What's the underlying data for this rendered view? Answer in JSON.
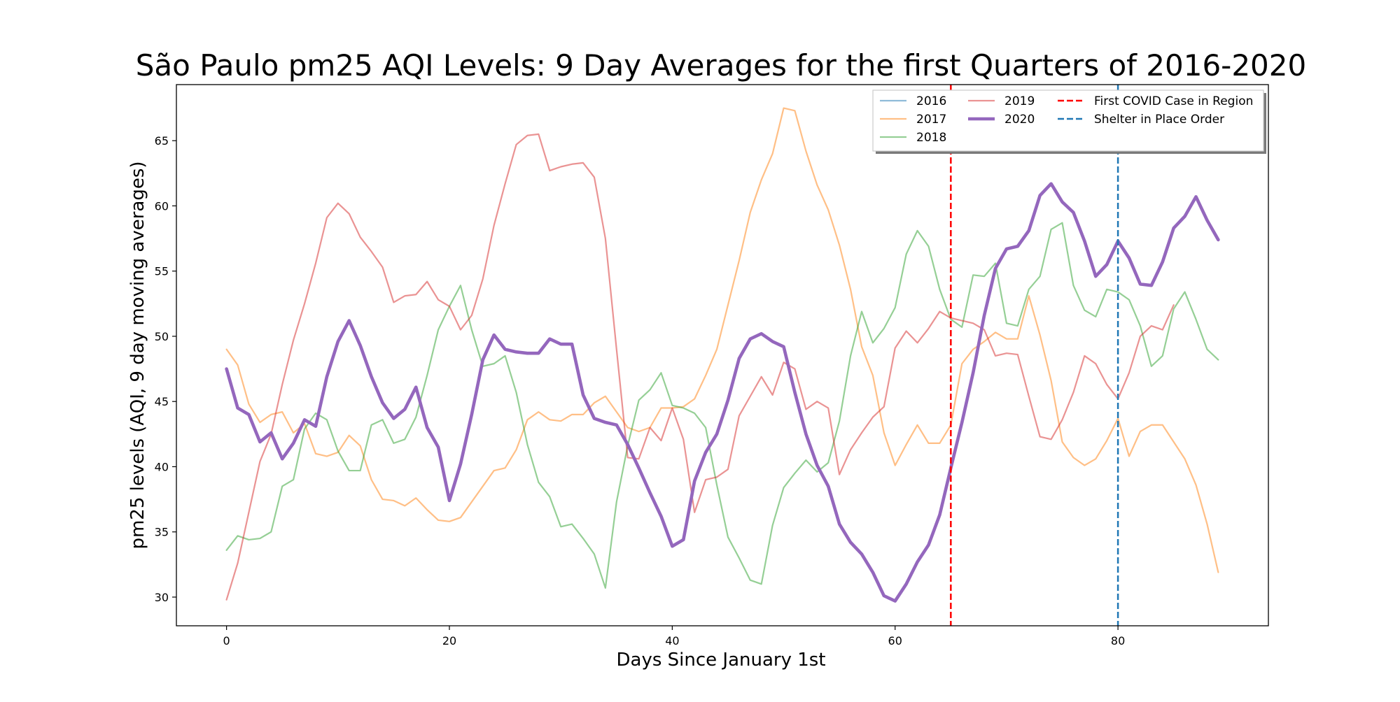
{
  "chart_data": {
    "type": "line",
    "title": "São Paulo pm25 AQI Levels: 9 Day Averages for the first Quarters of 2016-2020",
    "xlabel": "Days Since January 1st",
    "ylabel": "pm25 levels (AQI, 9 day moving averages)",
    "xlim": [
      -4.5,
      93.5
    ],
    "ylim": [
      27.8,
      69.3
    ],
    "xticks": [
      0,
      20,
      40,
      60,
      80
    ],
    "yticks": [
      30,
      35,
      40,
      45,
      50,
      55,
      60,
      65
    ],
    "grid": false,
    "legend_position": "top-right",
    "series": [
      {
        "name": "2016",
        "color": "#1f77b4",
        "x": [],
        "values": []
      },
      {
        "name": "2017",
        "color": "#ff7f0e",
        "x": [
          0,
          1,
          2,
          3,
          4,
          5,
          6,
          7,
          8,
          9,
          10,
          11,
          12,
          13,
          14,
          15,
          16,
          17,
          18,
          19,
          20,
          21,
          22,
          23,
          24,
          25,
          26,
          27,
          28,
          29,
          30,
          31,
          32,
          33,
          34,
          35,
          36,
          37,
          38,
          39,
          40,
          41,
          42,
          43,
          44,
          45,
          46,
          47,
          48,
          49,
          50,
          51,
          52,
          53,
          54,
          55,
          56,
          57,
          58,
          59,
          60,
          61,
          62,
          63,
          64,
          65,
          66,
          67,
          68,
          69,
          70,
          71,
          72,
          73,
          74,
          75,
          76,
          77,
          78,
          79,
          80,
          81,
          82,
          83,
          84,
          85,
          86,
          87,
          88,
          89
        ],
        "values": [
          49.0,
          47.8,
          44.8,
          43.4,
          44.0,
          44.2,
          42.6,
          43.3,
          41.0,
          40.8,
          41.1,
          42.4,
          41.6,
          39.0,
          37.5,
          37.4,
          37.0,
          37.6,
          36.7,
          35.9,
          35.8,
          36.1,
          37.3,
          38.5,
          39.7,
          39.9,
          41.3,
          43.6,
          44.2,
          43.6,
          43.5,
          44.0,
          44.0,
          44.9,
          45.4,
          44.2,
          43.0,
          42.7,
          43.0,
          44.5,
          44.5,
          44.6,
          45.2,
          47.0,
          49.0,
          52.4,
          55.8,
          59.5,
          62.0,
          64.0,
          67.5,
          67.3,
          64.2,
          61.6,
          59.7,
          57.0,
          53.6,
          49.2,
          47.0,
          42.6,
          40.1,
          41.7,
          43.2,
          41.8,
          41.8,
          43.2,
          47.9,
          49.0,
          49.6,
          50.3,
          49.8,
          49.8,
          53.1,
          50.1,
          46.6,
          41.9,
          40.7,
          40.1,
          40.6,
          42.0,
          43.7,
          40.8,
          42.7,
          43.2,
          43.2,
          41.9,
          40.6,
          38.6,
          35.6,
          31.9
        ]
      },
      {
        "name": "2018",
        "color": "#2ca02c",
        "x": [
          0,
          1,
          2,
          3,
          4,
          5,
          6,
          7,
          8,
          9,
          10,
          11,
          12,
          13,
          14,
          15,
          16,
          17,
          18,
          19,
          20,
          21,
          22,
          23,
          24,
          25,
          26,
          27,
          28,
          29,
          30,
          31,
          32,
          33,
          34,
          35,
          36,
          37,
          38,
          39,
          40,
          41,
          42,
          43,
          44,
          45,
          46,
          47,
          48,
          49,
          50,
          51,
          52,
          53,
          54,
          55,
          56,
          57,
          58,
          59,
          60,
          61,
          62,
          63,
          64,
          65,
          66,
          67,
          68,
          69,
          70,
          71,
          72,
          73,
          74,
          75,
          76,
          77,
          78,
          79,
          80,
          81,
          82,
          83,
          84,
          85,
          86,
          87,
          88,
          89
        ],
        "values": [
          33.6,
          34.7,
          34.4,
          34.5,
          35.0,
          38.5,
          39.0,
          42.9,
          44.1,
          43.6,
          41.2,
          39.7,
          39.7,
          43.2,
          43.6,
          41.8,
          42.1,
          43.8,
          47.0,
          50.5,
          52.3,
          53.9,
          50.5,
          47.7,
          47.9,
          48.5,
          45.7,
          41.7,
          38.8,
          37.7,
          35.4,
          35.6,
          34.5,
          33.3,
          30.7,
          37.3,
          41.6,
          45.1,
          45.9,
          47.2,
          44.7,
          44.5,
          44.1,
          43.0,
          38.6,
          34.6,
          33.0,
          31.3,
          31.0,
          35.5,
          38.4,
          39.5,
          40.5,
          39.6,
          40.3,
          43.5,
          48.5,
          51.9,
          49.5,
          50.6,
          52.2,
          56.3,
          58.1,
          56.9,
          53.6,
          51.3,
          50.7,
          54.7,
          54.6,
          55.6,
          51.0,
          50.8,
          53.6,
          54.6,
          58.2,
          58.7,
          53.9,
          52.0,
          51.5,
          53.6,
          53.4,
          52.8,
          50.8,
          47.7,
          48.5,
          52.1,
          53.4,
          51.3,
          49.0,
          48.2
        ]
      },
      {
        "name": "2019",
        "color": "#d62728",
        "x": [
          0,
          1,
          2,
          3,
          4,
          5,
          6,
          7,
          8,
          9,
          10,
          11,
          12,
          13,
          14,
          15,
          16,
          17,
          18,
          19,
          20,
          21,
          22,
          23,
          24,
          25,
          26,
          27,
          28,
          29,
          30,
          31,
          32,
          33,
          34,
          35,
          36,
          37,
          38,
          39,
          40,
          41,
          42,
          43,
          44,
          45,
          46,
          47,
          48,
          49,
          50,
          51,
          52,
          53,
          54,
          55,
          56,
          57,
          58,
          59,
          60,
          61,
          62,
          63,
          64,
          65,
          66,
          67,
          68,
          69,
          70,
          71,
          72,
          73,
          74,
          75,
          76,
          77,
          78,
          79,
          80,
          81,
          82,
          83,
          84,
          85
        ],
        "values": [
          29.8,
          32.6,
          36.5,
          40.4,
          42.5,
          46.3,
          49.7,
          52.5,
          55.6,
          59.1,
          60.2,
          59.4,
          57.6,
          56.5,
          55.3,
          52.6,
          53.1,
          53.2,
          54.2,
          52.8,
          52.3,
          50.5,
          51.6,
          54.4,
          58.5,
          61.7,
          64.7,
          65.4,
          65.5,
          62.7,
          63.0,
          63.2,
          63.3,
          62.2,
          57.5,
          49.0,
          40.7,
          40.6,
          43.0,
          42.0,
          44.5,
          42.1,
          36.5,
          39.0,
          39.2,
          39.8,
          43.9,
          45.4,
          46.9,
          45.5,
          48.0,
          47.5,
          44.4,
          45.0,
          44.5,
          39.4,
          41.3,
          42.6,
          43.8,
          44.6,
          49.1,
          50.4,
          49.5,
          50.6,
          51.9,
          51.4,
          51.2,
          51.0,
          50.5,
          48.5,
          48.7,
          48.6,
          45.4,
          42.3,
          42.1,
          43.6,
          45.7,
          48.5,
          47.9,
          46.3,
          45.2,
          47.2,
          50.0,
          50.8,
          50.5,
          52.4
        ]
      },
      {
        "name": "2020",
        "color": "#9467bd",
        "x": [
          0,
          1,
          2,
          3,
          4,
          5,
          6,
          7,
          8,
          9,
          10,
          11,
          12,
          13,
          14,
          15,
          16,
          17,
          18,
          19,
          20,
          21,
          22,
          23,
          24,
          25,
          26,
          27,
          28,
          29,
          30,
          31,
          32,
          33,
          34,
          35,
          36,
          37,
          38,
          39,
          40,
          41,
          42,
          43,
          44,
          45,
          46,
          47,
          48,
          49,
          50,
          51,
          52,
          53,
          54,
          55,
          56,
          57,
          58,
          59,
          60,
          61,
          62,
          63,
          64,
          65,
          66,
          67,
          68,
          69,
          70,
          71,
          72,
          73,
          74,
          75,
          76,
          77,
          78,
          79,
          80,
          81,
          82,
          83,
          84,
          85,
          86,
          87,
          88,
          89
        ],
        "values": [
          47.5,
          44.5,
          44.0,
          41.9,
          42.6,
          40.6,
          41.8,
          43.6,
          43.1,
          46.9,
          49.6,
          51.2,
          49.3,
          46.9,
          44.9,
          43.7,
          44.4,
          46.1,
          43.0,
          41.5,
          37.4,
          40.2,
          44.0,
          48.2,
          50.1,
          49.0,
          48.8,
          48.7,
          48.7,
          49.8,
          49.4,
          49.4,
          45.5,
          43.7,
          43.4,
          43.2,
          41.7,
          39.9,
          38.0,
          36.2,
          33.9,
          34.4,
          38.9,
          41.1,
          42.5,
          45.1,
          48.3,
          49.8,
          50.2,
          49.6,
          49.2,
          45.7,
          42.5,
          40.1,
          38.5,
          35.6,
          34.2,
          33.3,
          31.9,
          30.1,
          29.7,
          31.0,
          32.7,
          34.0,
          36.3,
          39.9,
          43.4,
          47.2,
          51.6,
          55.2,
          56.7,
          56.9,
          58.1,
          60.8,
          61.7,
          60.3,
          59.5,
          57.3,
          54.6,
          55.5,
          57.3,
          56.0,
          54.0,
          53.9,
          55.7,
          58.3,
          59.2,
          60.7,
          58.9,
          57.4
        ]
      }
    ],
    "vlines": [
      {
        "label": "First COVID Case in Region",
        "x": 65,
        "color": "#ff0000",
        "style": "dashed"
      },
      {
        "label": "Shelter in Place Order",
        "x": 80,
        "color": "#1f77b4",
        "style": "dashed"
      }
    ],
    "legend": [
      {
        "label": "2016",
        "color": "#1f77b4",
        "style": "solid",
        "emphasis": false
      },
      {
        "label": "2017",
        "color": "#ff7f0e",
        "style": "solid",
        "emphasis": false
      },
      {
        "label": "2018",
        "color": "#2ca02c",
        "style": "solid",
        "emphasis": false
      },
      {
        "label": "2019",
        "color": "#d62728",
        "style": "solid",
        "emphasis": false
      },
      {
        "label": "2020",
        "color": "#9467bd",
        "style": "solid",
        "emphasis": true
      },
      {
        "label": "First COVID Case in Region",
        "color": "#ff0000",
        "style": "dashed",
        "emphasis": false
      },
      {
        "label": "Shelter in Place Order",
        "color": "#1f77b4",
        "style": "dashed",
        "emphasis": false
      }
    ]
  }
}
